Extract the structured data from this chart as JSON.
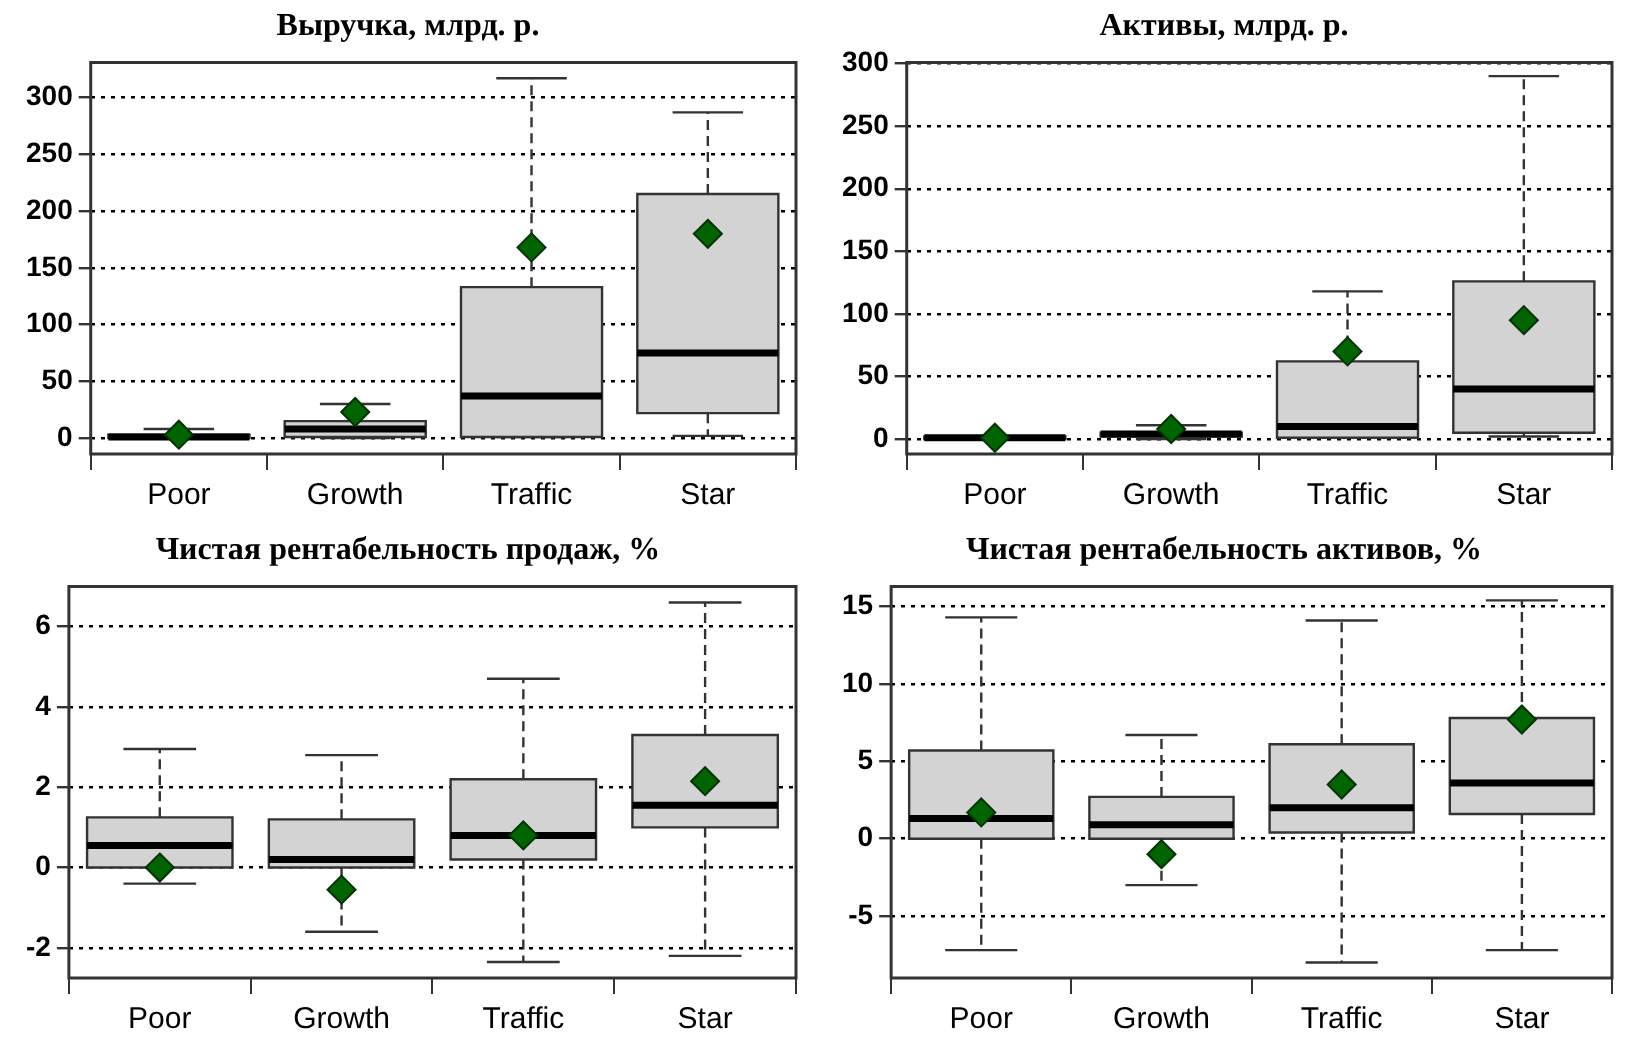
{
  "chart_data": [
    {
      "type": "box",
      "title": "Выручка, млрд. р.",
      "categories": [
        "Poor",
        "Growth",
        "Traffic",
        "Star"
      ],
      "ylim": [
        -14,
        331
      ],
      "yticks": [
        0,
        50,
        100,
        150,
        200,
        250,
        300
      ],
      "grid": "y",
      "color": "#d3d3d3",
      "marker": "diamond",
      "boxes": [
        {
          "low": 0,
          "q1": 0,
          "median": 1,
          "q3": 3,
          "high": 8,
          "mean": 3
        },
        {
          "low": 0,
          "q1": 1,
          "median": 8,
          "q3": 15,
          "high": 30,
          "mean": 23
        },
        {
          "low": 1,
          "q1": 1,
          "median": 37,
          "q3": 133,
          "high": 317,
          "mean": 168
        },
        {
          "low": 2,
          "q1": 22,
          "median": 75,
          "q3": 215,
          "high": 287,
          "mean": 180
        }
      ]
    },
    {
      "type": "box",
      "title": "Активы, млрд. р.",
      "categories": [
        "Poor",
        "Growth",
        "Traffic",
        "Star"
      ],
      "ylim": [
        -12,
        301
      ],
      "yticks": [
        0,
        50,
        100,
        150,
        200,
        250,
        300
      ],
      "grid": "y",
      "color": "#d3d3d3",
      "marker": "diamond",
      "boxes": [
        {
          "low": 0,
          "q1": 0,
          "median": 1,
          "q3": 2,
          "high": 2,
          "mean": 1
        },
        {
          "low": 0,
          "q1": 2,
          "median": 4,
          "q3": 5,
          "high": 11,
          "mean": 8
        },
        {
          "low": 1,
          "q1": 1,
          "median": 10,
          "q3": 62,
          "high": 118,
          "mean": 70
        },
        {
          "low": 2,
          "q1": 5,
          "median": 40,
          "q3": 126,
          "high": 290,
          "mean": 95
        }
      ]
    },
    {
      "type": "box",
      "title": "Чистая рентабельность продаж, %",
      "categories": [
        "Poor",
        "Growth",
        "Traffic",
        "Star"
      ],
      "ylim": [
        -2.75,
        7
      ],
      "yticks": [
        -2,
        0,
        2,
        4,
        6
      ],
      "grid": "y",
      "color": "#d3d3d3",
      "marker": "diamond",
      "boxes": [
        {
          "low": -0.4,
          "q1": 0,
          "median": 0.55,
          "q3": 1.25,
          "high": 2.95,
          "mean": 0
        },
        {
          "low": -1.6,
          "q1": 0,
          "median": 0.2,
          "q3": 1.2,
          "high": 2.8,
          "mean": -0.55
        },
        {
          "low": -2.35,
          "q1": 0.2,
          "median": 0.8,
          "q3": 2.2,
          "high": 4.7,
          "mean": 0.8
        },
        {
          "low": -2.2,
          "q1": 1.0,
          "median": 1.55,
          "q3": 3.3,
          "high": 6.6,
          "mean": 2.15
        }
      ]
    },
    {
      "type": "box",
      "title": "Чистая рентабельность активов, %",
      "categories": [
        "Poor",
        "Growth",
        "Traffic",
        "Star"
      ],
      "ylim": [
        -9,
        16.3
      ],
      "yticks": [
        -5,
        0,
        5,
        10,
        15
      ],
      "grid": "y",
      "color": "#d3d3d3",
      "marker": "diamond",
      "boxes": [
        {
          "low": -7.2,
          "q1": 0,
          "median": 1.3,
          "q3": 5.7,
          "high": 14.3,
          "mean": 1.7
        },
        {
          "low": -3,
          "q1": 0,
          "median": 0.9,
          "q3": 2.7,
          "high": 6.7,
          "mean": -1
        },
        {
          "low": -8,
          "q1": 0.4,
          "median": 2,
          "q3": 6.1,
          "high": 14.1,
          "mean": 3.5
        },
        {
          "low": -7.2,
          "q1": 1.6,
          "median": 3.6,
          "q3": 7.8,
          "high": 15.4,
          "mean": 7.7
        }
      ]
    }
  ]
}
